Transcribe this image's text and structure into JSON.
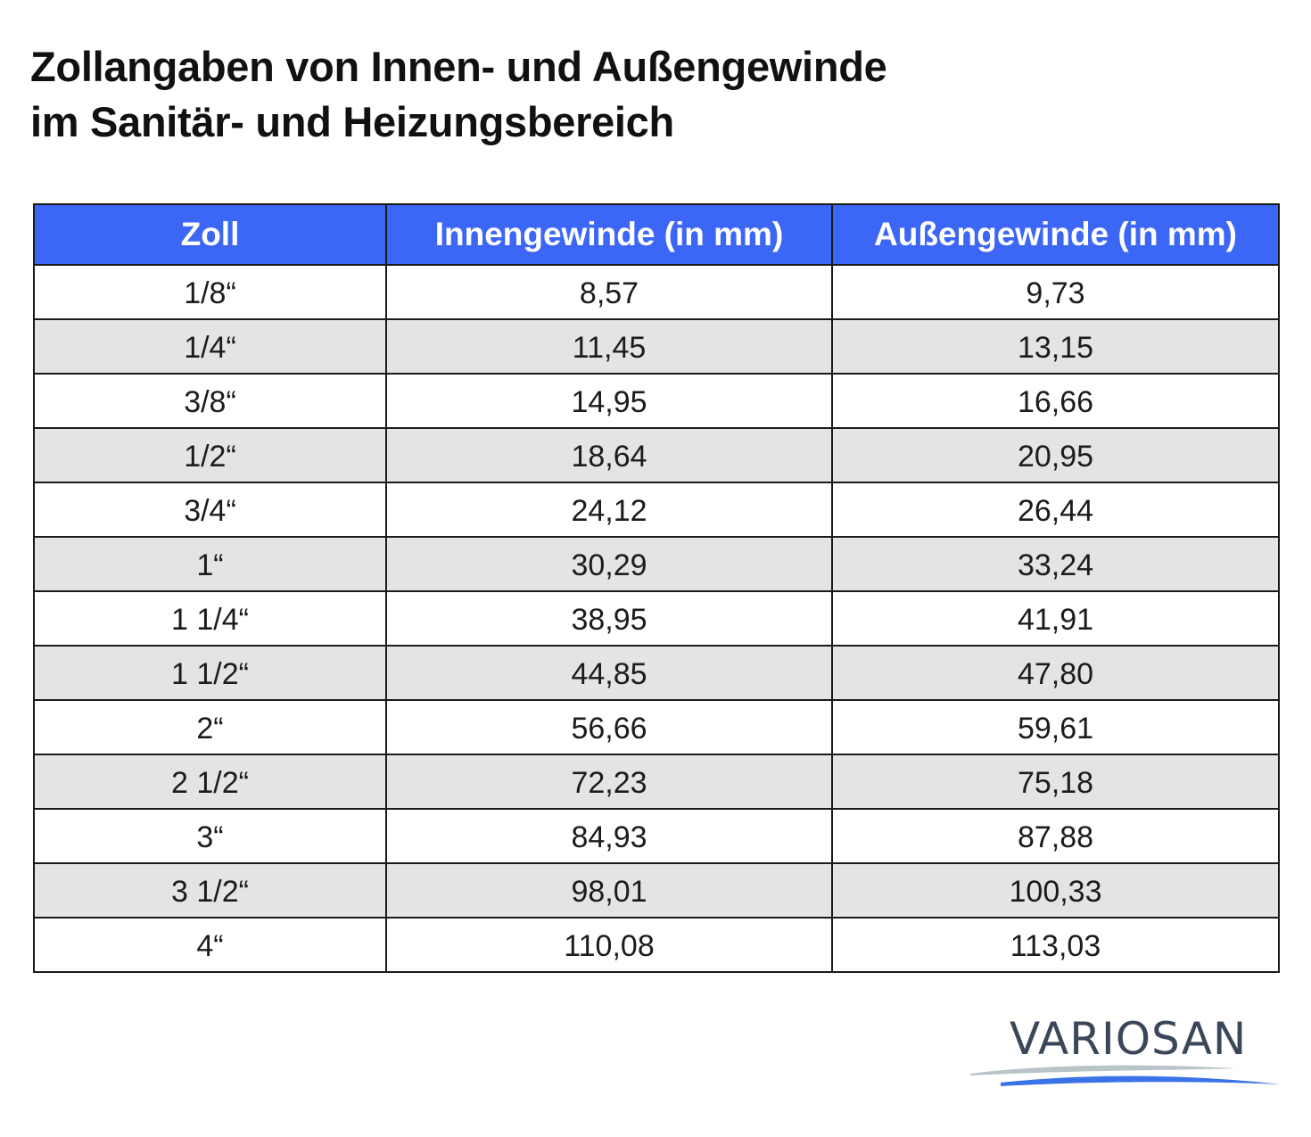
{
  "title": {
    "line1": "Zollangaben von Innen- und Außengewinde",
    "line2": "im Sanitär- und Heizungsbereich"
  },
  "table": {
    "headers": [
      "Zoll",
      "Innengewinde (in mm)",
      "Außengewinde (in mm)"
    ],
    "rows": [
      [
        "1/8“",
        "8,57",
        "9,73"
      ],
      [
        "1/4“",
        "11,45",
        "13,15"
      ],
      [
        "3/8“",
        "14,95",
        "16,66"
      ],
      [
        "1/2“",
        "18,64",
        "20,95"
      ],
      [
        "3/4“",
        "24,12",
        "26,44"
      ],
      [
        "1“",
        "30,29",
        "33,24"
      ],
      [
        "1 1/4“",
        "38,95",
        "41,91"
      ],
      [
        "1 1/2“",
        "44,85",
        "47,80"
      ],
      [
        "2“",
        "56,66",
        "59,61"
      ],
      [
        "2 1/2“",
        "72,23",
        "75,18"
      ],
      [
        "3“",
        "84,93",
        "87,88"
      ],
      [
        "3 1/2“",
        "98,01",
        "100,33"
      ],
      [
        "4“",
        "110,08",
        "113,03"
      ]
    ]
  },
  "logo": {
    "text": "VARIOSAN"
  },
  "colors": {
    "header_bg": "#3c66f5",
    "header_text": "#ffffff",
    "alt_row_bg": "#e4e4e4",
    "logo_text": "#3a4659",
    "logo_wave_gray": "#b9c4c8",
    "logo_wave_blue": "#3a72e8"
  }
}
